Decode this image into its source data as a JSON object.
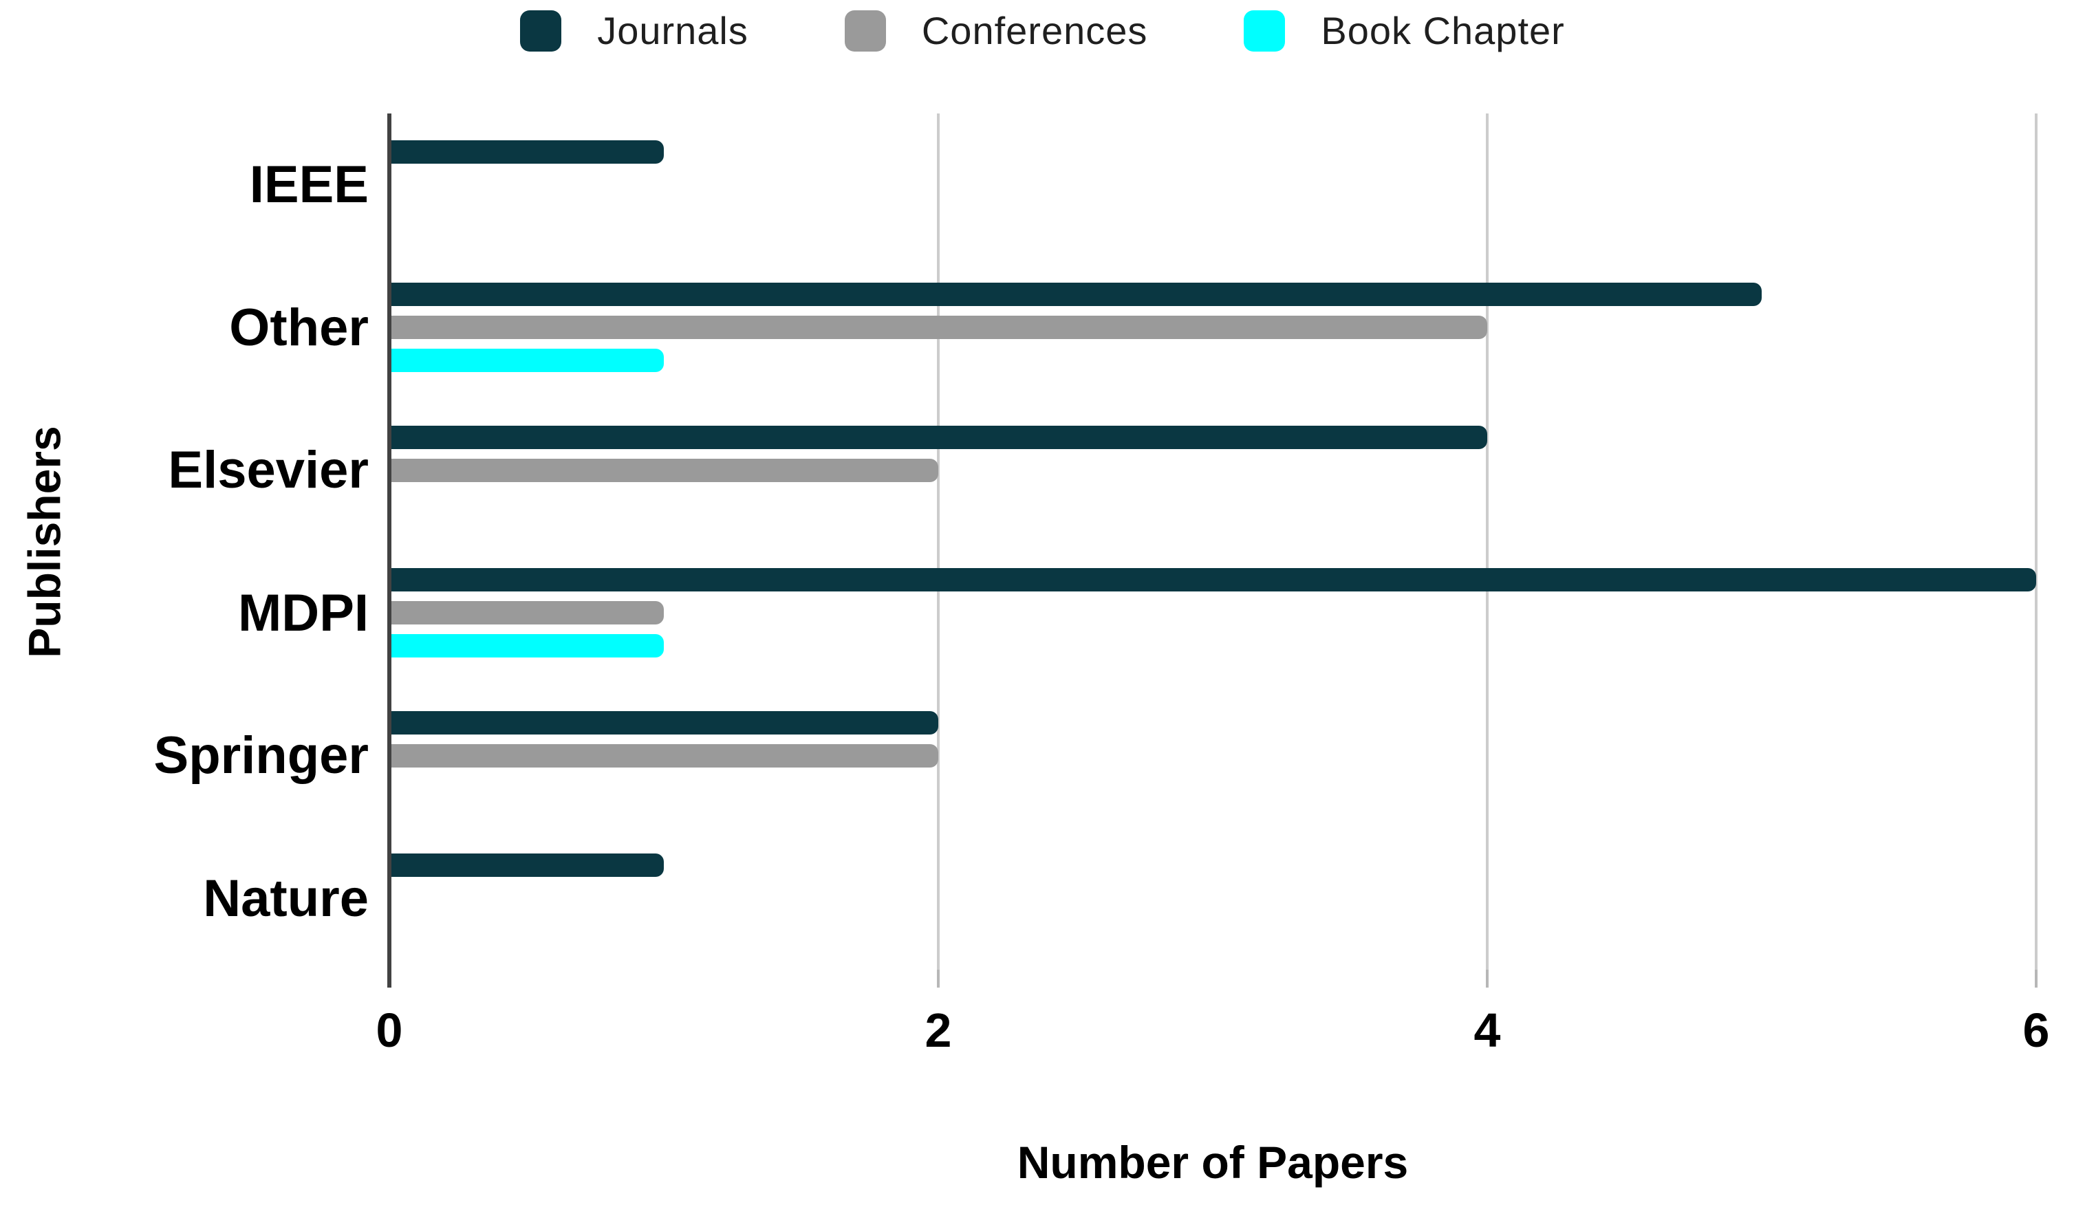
{
  "chart_data": {
    "type": "bar",
    "orientation": "horizontal",
    "xlabel": "Number of Papers",
    "ylabel": "Publishers",
    "categories": [
      "IEEE",
      "Other",
      "Elsevier",
      "MDPI",
      "Springer",
      "Nature"
    ],
    "series": [
      {
        "name": "Journals",
        "color": "#0a3742",
        "values": [
          1,
          5,
          4,
          6,
          2,
          1
        ]
      },
      {
        "name": "Conferences",
        "color": "#9a9a9a",
        "values": [
          0,
          4,
          2,
          1,
          2,
          0
        ]
      },
      {
        "name": "Book Chapter",
        "color": "#00ffff",
        "values": [
          0,
          1,
          0,
          1,
          0,
          0
        ]
      }
    ],
    "xlim": [
      0,
      6
    ],
    "xticks": [
      0,
      2,
      4,
      6
    ],
    "grid": true,
    "legend_position": "top"
  },
  "colors": {
    "axis_line": "#424242",
    "gridline": "#cccccc",
    "tick_mark": "#b7b7b7",
    "label_text": "#000000",
    "legend_text": "#1f1f1f",
    "background": "#ffffff"
  }
}
